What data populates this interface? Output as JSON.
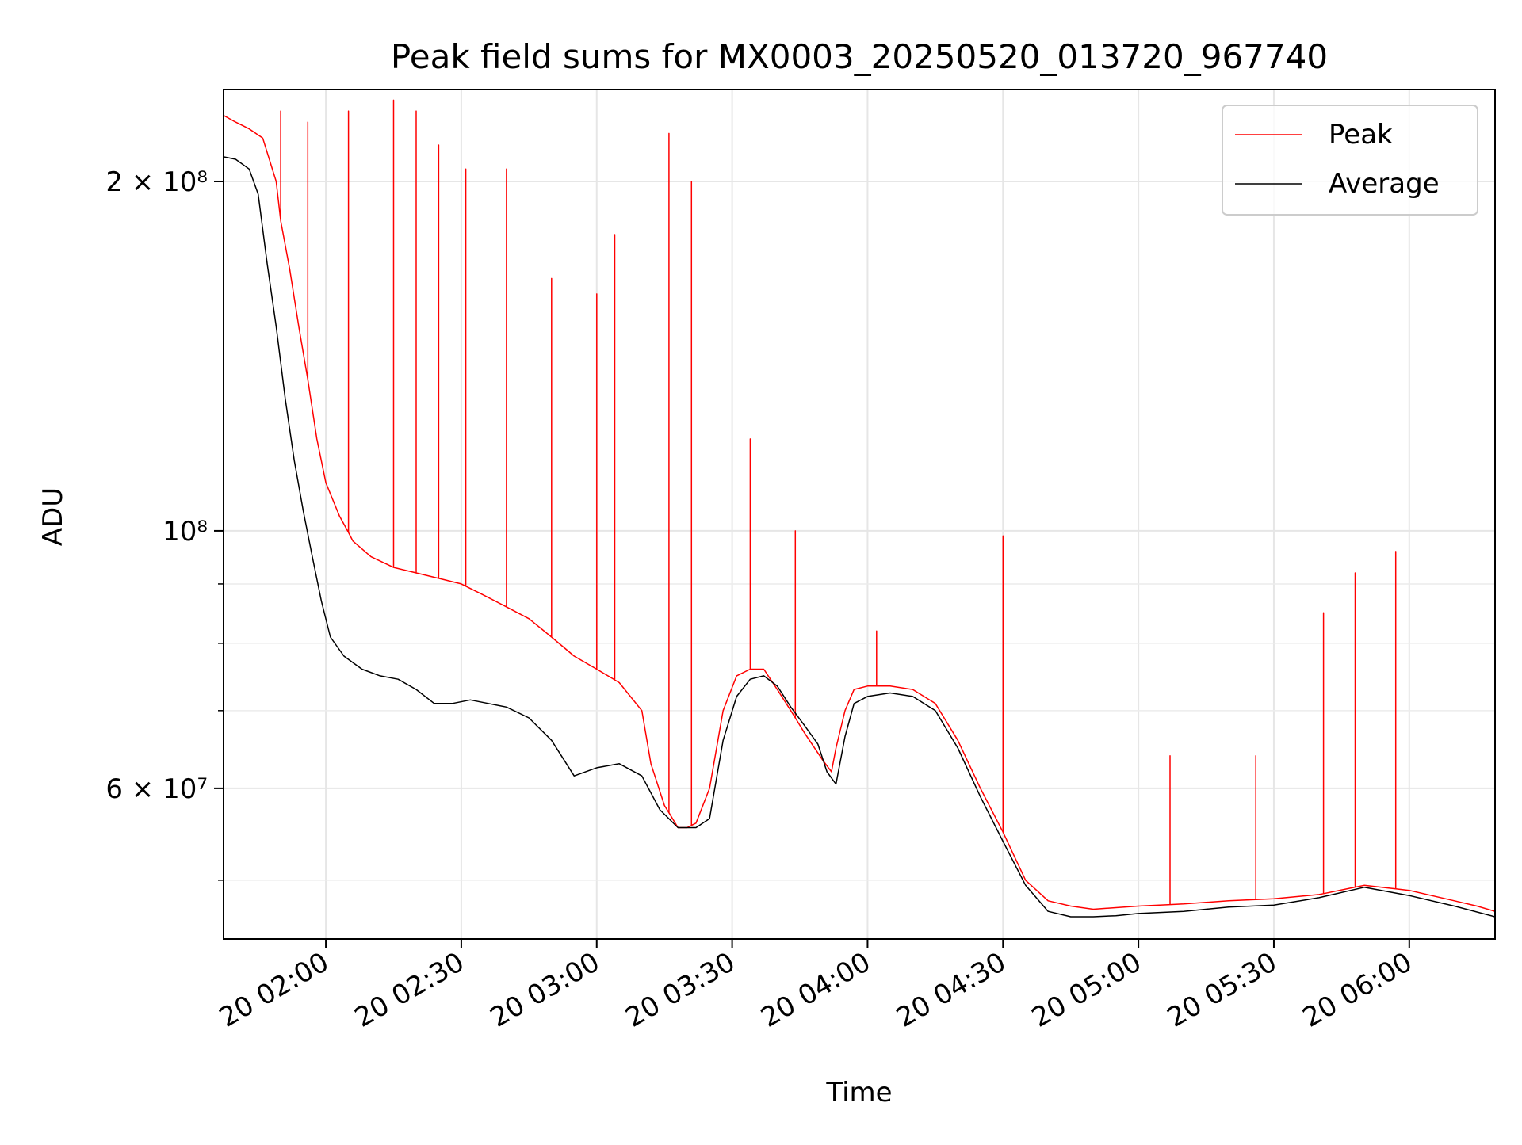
{
  "chart_data": {
    "type": "line",
    "title": "Peak field sums for MX0003_20250520_013720_967740",
    "xlabel": "Time",
    "ylabel": "ADU",
    "yscale": "log",
    "grid": true,
    "legend_position": "top-right",
    "xlim": [
      "2025-05-20 01:37:20",
      "2025-05-20 06:19:00"
    ],
    "ylim": [
      44500000,
      240000000
    ],
    "x_ticks": [
      {
        "value": "2025-05-20 02:00",
        "label": "20 02:00"
      },
      {
        "value": "2025-05-20 02:30",
        "label": "20 02:30"
      },
      {
        "value": "2025-05-20 03:00",
        "label": "20 03:00"
      },
      {
        "value": "2025-05-20 03:30",
        "label": "20 03:30"
      },
      {
        "value": "2025-05-20 04:00",
        "label": "20 04:00"
      },
      {
        "value": "2025-05-20 04:30",
        "label": "20 04:30"
      },
      {
        "value": "2025-05-20 05:00",
        "label": "20 05:00"
      },
      {
        "value": "2025-05-20 05:30",
        "label": "20 05:30"
      },
      {
        "value": "2025-05-20 06:00",
        "label": "20 06:00"
      }
    ],
    "y_ticks": [
      {
        "value": 200000000,
        "label": "2 × 10⁸"
      },
      {
        "value": 100000000,
        "label": "10⁸"
      },
      {
        "value": 60000000,
        "label": "6 × 10⁷"
      }
    ],
    "y_minor_ticks": [
      50000000,
      70000000,
      80000000,
      90000000
    ],
    "series": [
      {
        "name": "Peak",
        "color": "#ff0000",
        "x": [
          "2025-05-20 01:37:20",
          "2025-05-20 01:40",
          "2025-05-20 01:43",
          "2025-05-20 01:46",
          "2025-05-20 01:49",
          "2025-05-20 01:50",
          "2025-05-20 01:52",
          "2025-05-20 01:54",
          "2025-05-20 01:56",
          "2025-05-20 01:58",
          "2025-05-20 02:00",
          "2025-05-20 02:03",
          "2025-05-20 02:06",
          "2025-05-20 02:10",
          "2025-05-20 02:15",
          "2025-05-20 02:20",
          "2025-05-20 02:25",
          "2025-05-20 02:30",
          "2025-05-20 02:35",
          "2025-05-20 02:40",
          "2025-05-20 02:45",
          "2025-05-20 02:50",
          "2025-05-20 02:55",
          "2025-05-20 03:00",
          "2025-05-20 03:05",
          "2025-05-20 03:10",
          "2025-05-20 03:12",
          "2025-05-20 03:15",
          "2025-05-20 03:18",
          "2025-05-20 03:20",
          "2025-05-20 03:22",
          "2025-05-20 03:25",
          "2025-05-20 03:28",
          "2025-05-20 03:31",
          "2025-05-20 03:34",
          "2025-05-20 03:37",
          "2025-05-20 03:40",
          "2025-05-20 03:43",
          "2025-05-20 03:46",
          "2025-05-20 03:50",
          "2025-05-20 03:52",
          "2025-05-20 03:53",
          "2025-05-20 03:55",
          "2025-05-20 03:57",
          "2025-05-20 04:00",
          "2025-05-20 04:05",
          "2025-05-20 04:10",
          "2025-05-20 04:15",
          "2025-05-20 04:20",
          "2025-05-20 04:25",
          "2025-05-20 04:30",
          "2025-05-20 04:35",
          "2025-05-20 04:40",
          "2025-05-20 04:45",
          "2025-05-20 04:50",
          "2025-05-20 05:00",
          "2025-05-20 05:10",
          "2025-05-20 05:20",
          "2025-05-20 05:30",
          "2025-05-20 05:40",
          "2025-05-20 05:50",
          "2025-05-20 06:00",
          "2025-05-20 06:10",
          "2025-05-20 06:15",
          "2025-05-20 06:19"
        ],
        "values": [
          228000000,
          225000000,
          222000000,
          218000000,
          200000000,
          185000000,
          168000000,
          150000000,
          135000000,
          120000000,
          110000000,
          103000000,
          98000000,
          95000000,
          93000000,
          92000000,
          91000000,
          90000000,
          88000000,
          86000000,
          84000000,
          81000000,
          78000000,
          76000000,
          74000000,
          70000000,
          63000000,
          58000000,
          55500000,
          55500000,
          56000000,
          60000000,
          70000000,
          75000000,
          76000000,
          76000000,
          73000000,
          70000000,
          67000000,
          63500000,
          62000000,
          65000000,
          70000000,
          73000000,
          73500000,
          73500000,
          73000000,
          71000000,
          66000000,
          60000000,
          55000000,
          50000000,
          48000000,
          47500000,
          47200000,
          47500000,
          47700000,
          48000000,
          48200000,
          48600000,
          49500000,
          49000000,
          48000000,
          47500000,
          47000000
        ],
        "spikes": [
          {
            "x": "2025-05-20 01:50",
            "y": 230000000
          },
          {
            "x": "2025-05-20 01:56",
            "y": 225000000
          },
          {
            "x": "2025-05-20 02:05",
            "y": 230000000
          },
          {
            "x": "2025-05-20 02:15",
            "y": 235000000
          },
          {
            "x": "2025-05-20 02:20",
            "y": 230000000
          },
          {
            "x": "2025-05-20 02:25",
            "y": 215000000
          },
          {
            "x": "2025-05-20 02:31",
            "y": 205000000
          },
          {
            "x": "2025-05-20 02:40",
            "y": 205000000
          },
          {
            "x": "2025-05-20 02:50",
            "y": 165000000
          },
          {
            "x": "2025-05-20 03:00",
            "y": 160000000
          },
          {
            "x": "2025-05-20 03:04",
            "y": 180000000
          },
          {
            "x": "2025-05-20 03:16",
            "y": 220000000
          },
          {
            "x": "2025-05-20 03:21",
            "y": 200000000
          },
          {
            "x": "2025-05-20 03:34",
            "y": 120000000
          },
          {
            "x": "2025-05-20 03:44",
            "y": 100000000
          },
          {
            "x": "2025-05-20 04:02",
            "y": 82000000
          },
          {
            "x": "2025-05-20 04:30",
            "y": 99000000
          },
          {
            "x": "2025-05-20 05:07",
            "y": 64000000
          },
          {
            "x": "2025-05-20 05:26",
            "y": 64000000
          },
          {
            "x": "2025-05-20 05:41",
            "y": 85000000
          },
          {
            "x": "2025-05-20 05:48",
            "y": 92000000
          },
          {
            "x": "2025-05-20 05:57",
            "y": 96000000
          }
        ]
      },
      {
        "name": "Average",
        "color": "#000000",
        "x": [
          "2025-05-20 01:37:20",
          "2025-05-20 01:40",
          "2025-05-20 01:43",
          "2025-05-20 01:45",
          "2025-05-20 01:47",
          "2025-05-20 01:49",
          "2025-05-20 01:51",
          "2025-05-20 01:53",
          "2025-05-20 01:55",
          "2025-05-20 01:57",
          "2025-05-20 01:59",
          "2025-05-20 02:01",
          "2025-05-20 02:04",
          "2025-05-20 02:08",
          "2025-05-20 02:12",
          "2025-05-20 02:16",
          "2025-05-20 02:20",
          "2025-05-20 02:24",
          "2025-05-20 02:28",
          "2025-05-20 02:32",
          "2025-05-20 02:36",
          "2025-05-20 02:40",
          "2025-05-20 02:45",
          "2025-05-20 02:50",
          "2025-05-20 02:55",
          "2025-05-20 03:00",
          "2025-05-20 03:05",
          "2025-05-20 03:10",
          "2025-05-20 03:14",
          "2025-05-20 03:18",
          "2025-05-20 03:22",
          "2025-05-20 03:25",
          "2025-05-20 03:28",
          "2025-05-20 03:31",
          "2025-05-20 03:34",
          "2025-05-20 03:37",
          "2025-05-20 03:40",
          "2025-05-20 03:43",
          "2025-05-20 03:46",
          "2025-05-20 03:49",
          "2025-05-20 03:51",
          "2025-05-20 03:53",
          "2025-05-20 03:55",
          "2025-05-20 03:57",
          "2025-05-20 04:00",
          "2025-05-20 04:05",
          "2025-05-20 04:10",
          "2025-05-20 04:15",
          "2025-05-20 04:20",
          "2025-05-20 04:25",
          "2025-05-20 04:30",
          "2025-05-20 04:35",
          "2025-05-20 04:40",
          "2025-05-20 04:45",
          "2025-05-20 04:50",
          "2025-05-20 04:55",
          "2025-05-20 05:00",
          "2025-05-20 05:10",
          "2025-05-20 05:20",
          "2025-05-20 05:30",
          "2025-05-20 05:40",
          "2025-05-20 05:50",
          "2025-05-20 06:00",
          "2025-05-20 06:10",
          "2025-05-20 06:19"
        ],
        "values": [
          210000000,
          209000000,
          205000000,
          195000000,
          170000000,
          150000000,
          130000000,
          115000000,
          104000000,
          95000000,
          87000000,
          81000000,
          78000000,
          76000000,
          75000000,
          74500000,
          73000000,
          71000000,
          71000000,
          71500000,
          71000000,
          70500000,
          69000000,
          66000000,
          61500000,
          62500000,
          63000000,
          61500000,
          57500000,
          55500000,
          55500000,
          56500000,
          66000000,
          72000000,
          74500000,
          75000000,
          73500000,
          70500000,
          68000000,
          65500000,
          62000000,
          60500000,
          66500000,
          71000000,
          72000000,
          72500000,
          72000000,
          70000000,
          65000000,
          59000000,
          54000000,
          49500000,
          47000000,
          46500000,
          46500000,
          46600000,
          46800000,
          47000000,
          47400000,
          47600000,
          48300000,
          49300000,
          48500000,
          47500000,
          46500000
        ]
      }
    ]
  }
}
